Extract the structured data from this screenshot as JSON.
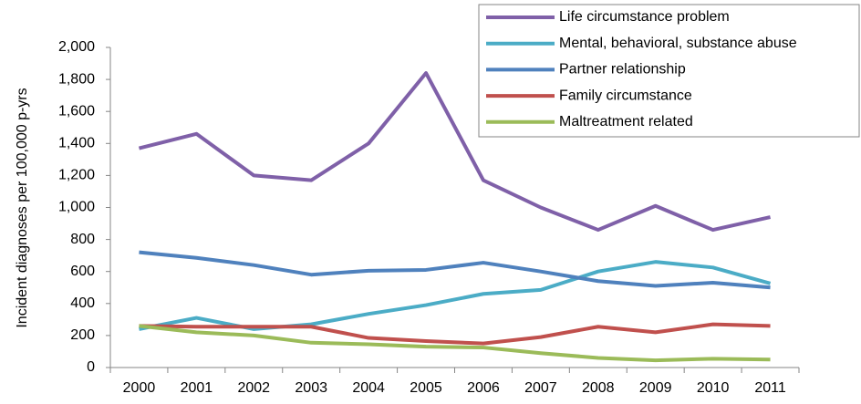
{
  "chart_data": {
    "type": "line",
    "y_label": "Incident diagnoses per 100,000 p-yrs",
    "categories": [
      "2000",
      "2001",
      "2002",
      "2003",
      "2004",
      "2005",
      "2006",
      "2007",
      "2008",
      "2009",
      "2010",
      "2011"
    ],
    "series": [
      {
        "name": "Life circumstance problem",
        "color": "#7f60a8",
        "values": [
          1370,
          1460,
          1200,
          1170,
          1400,
          1840,
          1170,
          1000,
          860,
          1010,
          860,
          940
        ]
      },
      {
        "name": "Mental, behavioral, substance abuse",
        "color": "#4bacc6",
        "values": [
          240,
          310,
          240,
          270,
          335,
          390,
          460,
          485,
          600,
          660,
          625,
          525
        ]
      },
      {
        "name": "Partner relationship",
        "color": "#4f81bd",
        "values": [
          720,
          685,
          640,
          580,
          605,
          610,
          655,
          600,
          540,
          510,
          530,
          500
        ]
      },
      {
        "name": "Family circumstance",
        "color": "#c0504d",
        "values": [
          260,
          255,
          255,
          255,
          185,
          165,
          150,
          190,
          255,
          220,
          270,
          260
        ]
      },
      {
        "name": "Maltreatment related",
        "color": "#9bbb59",
        "values": [
          260,
          220,
          200,
          155,
          145,
          130,
          125,
          90,
          60,
          45,
          55,
          50
        ]
      }
    ],
    "ylim": [
      0,
      2000
    ],
    "yticks": [
      0,
      200,
      400,
      600,
      800,
      {
        "value": 1000,
        "label": "1,000"
      },
      {
        "value": 1200,
        "label": "1,200"
      },
      {
        "value": 1400,
        "label": "1,400"
      },
      {
        "value": 1600,
        "label": "1,600"
      },
      {
        "value": 1800,
        "label": "1,800"
      },
      {
        "value": 2000,
        "label": "2,000"
      }
    ],
    "grid": false,
    "legend": "upper right"
  }
}
